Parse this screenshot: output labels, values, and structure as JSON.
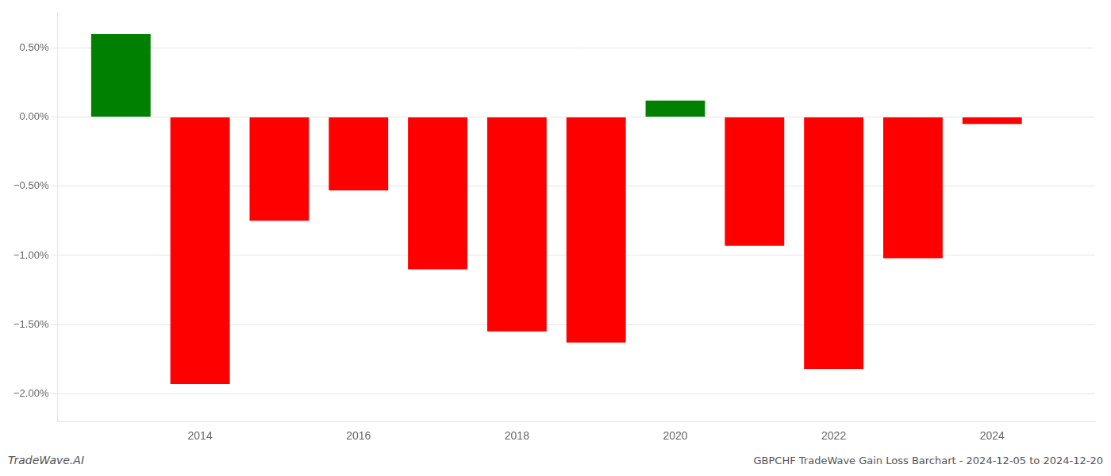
{
  "chart_data": {
    "type": "bar",
    "x": [
      2013,
      2014,
      2015,
      2016,
      2017,
      2018,
      2019,
      2020,
      2021,
      2022,
      2023,
      2024
    ],
    "values": [
      0.006,
      -0.0193,
      -0.0075,
      -0.0053,
      -0.011,
      -0.0155,
      -0.0163,
      0.0012,
      -0.0093,
      -0.0182,
      -0.0102,
      -0.0005
    ],
    "colors": [
      "#008000",
      "#FF0000",
      "#FF0000",
      "#FF0000",
      "#FF0000",
      "#FF0000",
      "#FF0000",
      "#008000",
      "#FF0000",
      "#FF0000",
      "#FF0000",
      "#FF0000"
    ],
    "xlim": [
      2012.2,
      2025.3
    ],
    "xticks": [
      2014,
      2016,
      2018,
      2020,
      2022,
      2024
    ],
    "ylim": [
      -0.022,
      0.0075
    ],
    "yticks": [
      {
        "value": -0.02,
        "label": "−2.00%"
      },
      {
        "value": -0.015,
        "label": "−1.50%"
      },
      {
        "value": -0.01,
        "label": "−1.00%"
      },
      {
        "value": -0.005,
        "label": "−0.50%"
      },
      {
        "value": 0.0,
        "label": "0.00%"
      },
      {
        "value": 0.005,
        "label": "0.50%"
      }
    ],
    "grid": true,
    "annotations": [
      "TradeWave.AI",
      "GBPCHF TradeWave Gain Loss Barchart - 2024-12-05 to 2024-12-20"
    ]
  }
}
